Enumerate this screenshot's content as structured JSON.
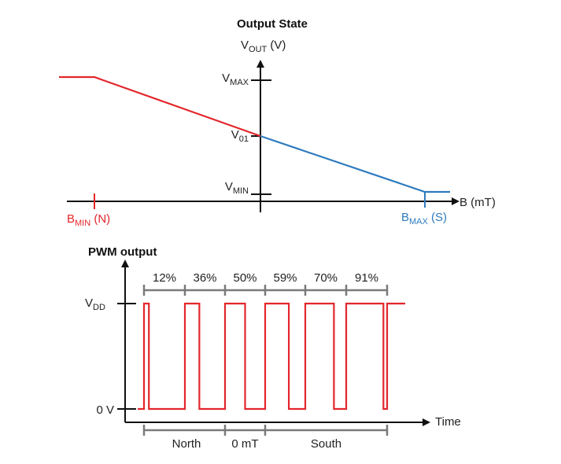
{
  "top": {
    "title": "Output State",
    "y_axis": {
      "base": "V",
      "sub": "OUT",
      "unit": " (V)"
    },
    "x_axis": "B (mT)",
    "levels": [
      {
        "base": "V",
        "sub": "MAX"
      },
      {
        "base": "V",
        "sub": "01"
      },
      {
        "base": "V",
        "sub": "MIN"
      }
    ],
    "bmin": {
      "base": "B",
      "sub": "MIN",
      "suffix": " (N)"
    },
    "bmax": {
      "base": "B",
      "sub": "MAX",
      "suffix": " (S)"
    },
    "colors": {
      "north": "#e3262b",
      "south": "#2f7bbf",
      "axis": "#111111"
    }
  },
  "bottom": {
    "title": "PWM output",
    "vdd": {
      "base": "V",
      "sub": "DD"
    },
    "zero": "0 V",
    "x_axis": "Time",
    "duty_cycles": [
      "12%",
      "36%",
      "50%",
      "59%",
      "70%",
      "91%"
    ],
    "duty_values": [
      12,
      36,
      50,
      59,
      70,
      91
    ],
    "regions": [
      "North",
      "0 mT",
      "South"
    ],
    "colors": {
      "signal": "#e3262b",
      "bracket": "#7a7a7a"
    }
  }
}
